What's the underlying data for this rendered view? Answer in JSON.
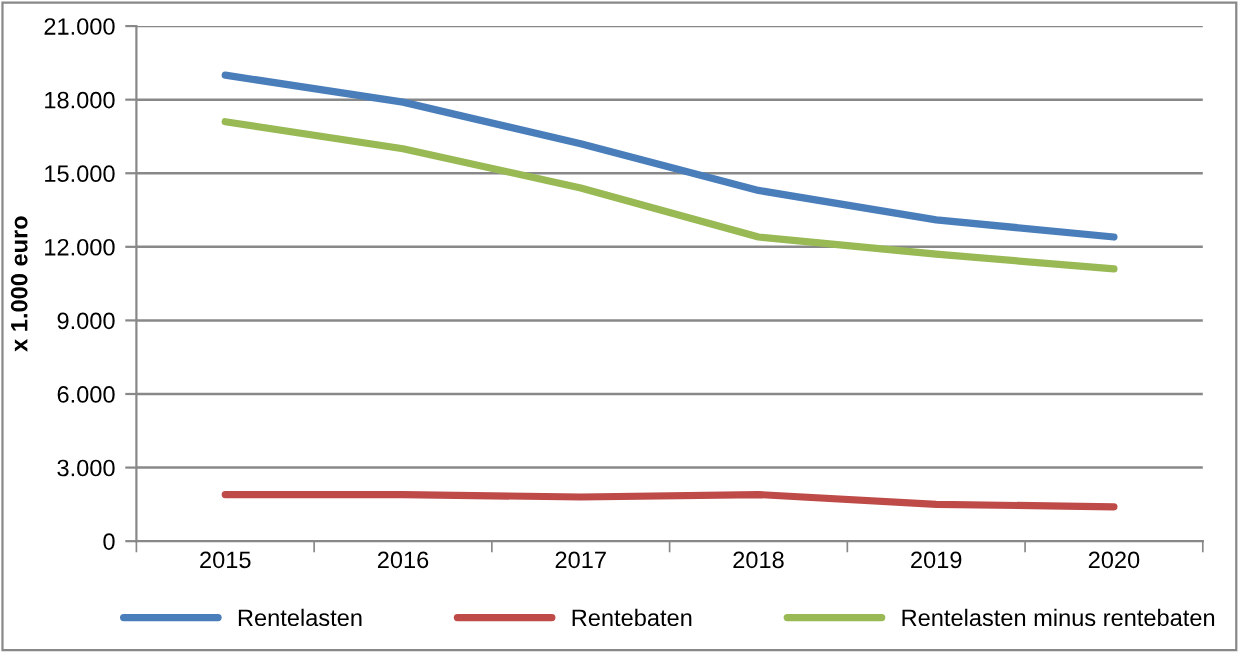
{
  "chart_data": {
    "type": "line",
    "ylabel": "x 1.000 euro",
    "categories": [
      "2015",
      "2016",
      "2017",
      "2018",
      "2019",
      "2020"
    ],
    "series": [
      {
        "name": "Rentelasten",
        "color": "#4a7ebb",
        "values": [
          19000,
          17900,
          16200,
          14300,
          13100,
          12400
        ]
      },
      {
        "name": "Rentebaten",
        "color": "#be4b48",
        "values": [
          1900,
          1900,
          1800,
          1900,
          1500,
          1400
        ]
      },
      {
        "name": "Rentelasten minus rentebaten",
        "color": "#98b954",
        "values": [
          17100,
          16000,
          14400,
          12400,
          11700,
          11100
        ]
      }
    ],
    "ylim": [
      0,
      21000
    ],
    "yticks": [
      {
        "value": 0,
        "label": "0"
      },
      {
        "value": 3000,
        "label": "3.000"
      },
      {
        "value": 6000,
        "label": "6.000"
      },
      {
        "value": 9000,
        "label": "9.000"
      },
      {
        "value": 12000,
        "label": "12.000"
      },
      {
        "value": 15000,
        "label": "15.000"
      },
      {
        "value": 18000,
        "label": "18.000"
      },
      {
        "value": 21000,
        "label": "21.000"
      }
    ],
    "grid": "y",
    "legend": "bottom",
    "marker": "none",
    "line_style": "solid"
  }
}
